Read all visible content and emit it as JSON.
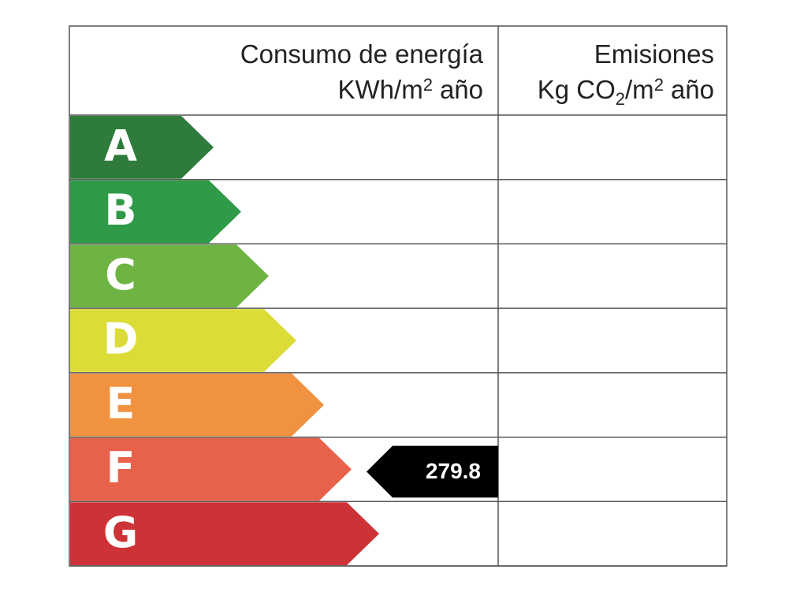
{
  "header": {
    "energy": {
      "line1": "Consumo de energía",
      "line2": [
        "KWh/m",
        "2",
        "año"
      ]
    },
    "emissions": {
      "line1": "Emisiones",
      "line2": [
        "Kg CO",
        "2",
        "/m",
        "2",
        "año"
      ]
    }
  },
  "ratings": [
    {
      "letter": "A",
      "color": "#2e7b3c"
    },
    {
      "letter": "B",
      "color": "#2f9a47"
    },
    {
      "letter": "C",
      "color": "#6db443"
    },
    {
      "letter": "D",
      "color": "#dcdc38"
    },
    {
      "letter": "E",
      "color": "#f0923f"
    },
    {
      "letter": "F",
      "color": "#e8624b",
      "consumption": 279.8
    },
    {
      "letter": "G",
      "color": "#cd3236"
    }
  ]
}
